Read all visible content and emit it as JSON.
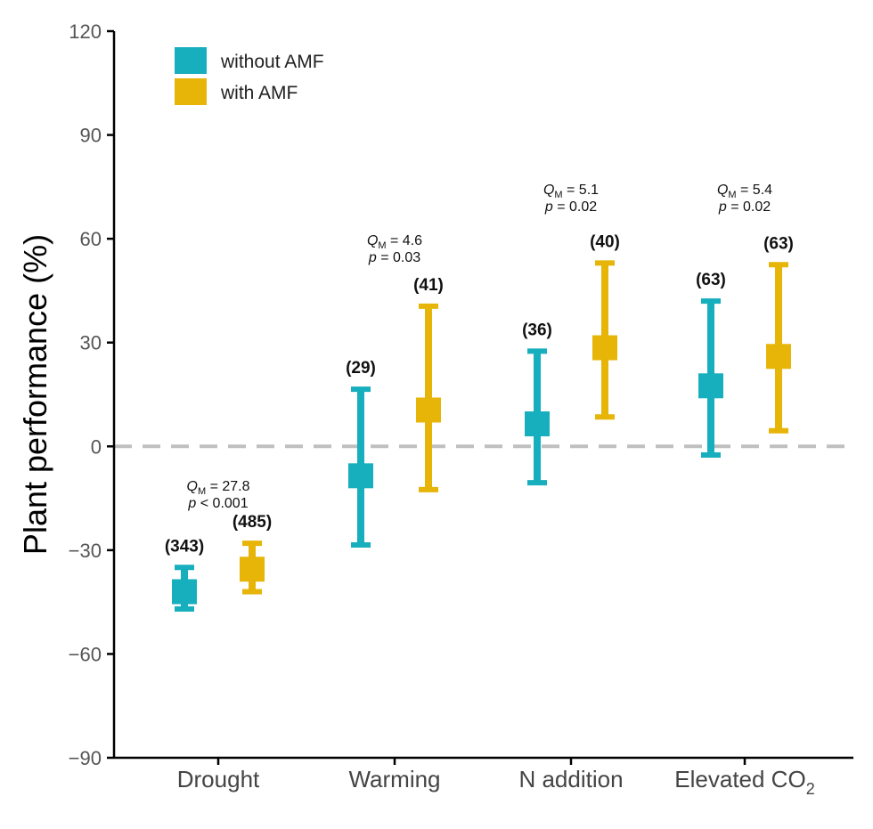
{
  "chart_data": {
    "type": "scatter",
    "ylabel": "Plant performance (%)",
    "ylim": [
      -90,
      120
    ],
    "yticks": [
      -90,
      -60,
      -30,
      0,
      30,
      60,
      90,
      120
    ],
    "ytick_labels": [
      "−90",
      "−60",
      "−30",
      "0",
      "30",
      "60",
      "90",
      "120"
    ],
    "reference_line": 0,
    "categories": [
      {
        "label": "Drought",
        "sub": ""
      },
      {
        "label": "Warming",
        "sub": ""
      },
      {
        "label": "N addition",
        "sub": ""
      },
      {
        "label": "Elevated CO",
        "sub": "2"
      }
    ],
    "legend": {
      "position": "top-left"
    },
    "series": [
      {
        "name": "without AMF",
        "color": "#17AEBD",
        "values": [
          -42,
          -8.5,
          6.5,
          17.5
        ],
        "lower": [
          -47,
          -28.5,
          -10.5,
          -2.5
        ],
        "upper": [
          -35,
          16.5,
          27.5,
          42
        ],
        "n_labels": [
          "(343)",
          "(29)",
          "(36)",
          "(63)"
        ]
      },
      {
        "name": "with AMF",
        "color": "#E7B508",
        "values": [
          -35.5,
          10.5,
          28.5,
          26
        ],
        "lower": [
          -42,
          -12.5,
          8.5,
          4.5
        ],
        "upper": [
          -28,
          40.5,
          53,
          52.5
        ],
        "n_labels": [
          "(485)",
          "(41)",
          "(40)",
          "(63)"
        ]
      }
    ],
    "stats": [
      {
        "q_label": "Q",
        "q_sub": "M",
        "q_value": "= 27.8",
        "p_label": "p",
        "p_value": "< 0.001"
      },
      {
        "q_label": "Q",
        "q_sub": "M",
        "q_value": "= 4.6",
        "p_label": "p",
        "p_value": "= 0.03"
      },
      {
        "q_label": "Q",
        "q_sub": "M",
        "q_value": "= 5.1",
        "p_label": "p",
        "p_value": "= 0.02"
      },
      {
        "q_label": "Q",
        "q_sub": "M",
        "q_value": "= 5.4",
        "p_label": "p",
        "p_value": "= 0.02"
      }
    ]
  }
}
